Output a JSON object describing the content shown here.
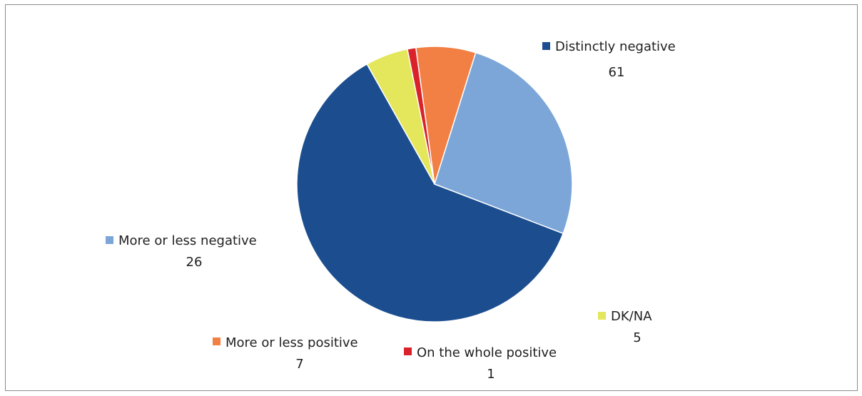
{
  "chart_data": {
    "type": "pie",
    "title": "",
    "slices": [
      {
        "label": "Distinctly negative",
        "value": 61,
        "value_label": "61",
        "color": "#1c4e8f"
      },
      {
        "label": "DK/NA",
        "value": 5,
        "value_label": "5",
        "color": "#e4e65c"
      },
      {
        "label": "On the whole positive",
        "value": 1,
        "value_label": "1",
        "color": "#d9222a"
      },
      {
        "label": "More or less positive",
        "value": 7,
        "value_label": "7",
        "color": "#f27f43"
      },
      {
        "label": "More or less negative",
        "value": 26,
        "value_label": "26",
        "color": "#7ca6d8"
      }
    ],
    "legend": "labels-beside-slices"
  }
}
